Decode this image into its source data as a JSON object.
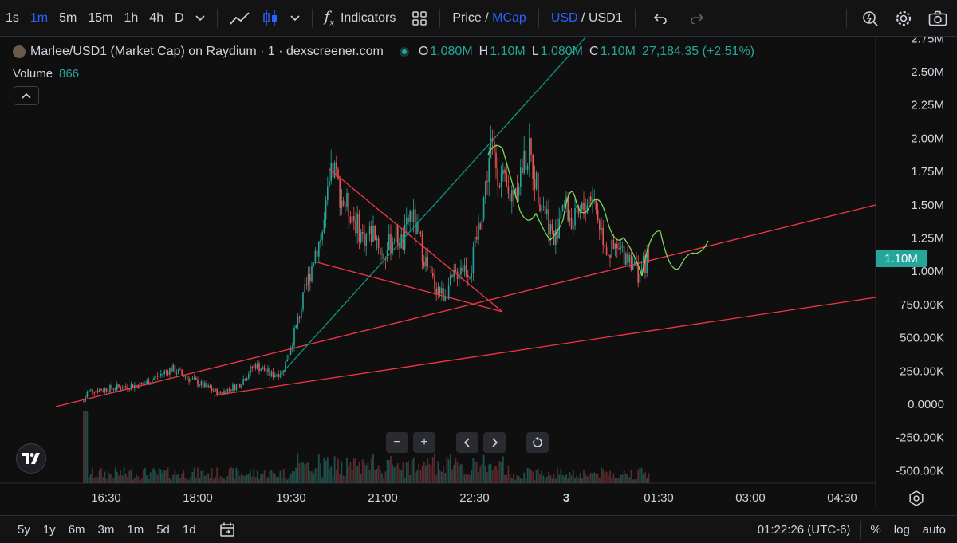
{
  "toolbar": {
    "intervals": [
      {
        "label": "1s",
        "active": false
      },
      {
        "label": "1m",
        "active": true
      },
      {
        "label": "5m",
        "active": false
      },
      {
        "label": "15m",
        "active": false
      },
      {
        "label": "1h",
        "active": false
      },
      {
        "label": "4h",
        "active": false
      },
      {
        "label": "D",
        "active": false
      }
    ],
    "indicators_label": "Indicators",
    "price_label": "Price",
    "price_sep": " / ",
    "mcap_label": "MCap",
    "usd_label": "USD",
    "usd_sep": " / ",
    "usd1_label": "USD1"
  },
  "legend": {
    "symbol": "Marlee/USD1 (Market Cap) on Raydium · 1 · dexscreener.com",
    "o_key": "O",
    "o_val": "1.080M",
    "h_key": "H",
    "h_val": "1.10M",
    "l_key": "L",
    "l_val": "1.080M",
    "c_key": "C",
    "c_val": "1.10M",
    "change": "27,184.35 (+2.51%)",
    "volume_label": "Volume",
    "volume_value": "866"
  },
  "price_axis": {
    "labels": [
      "2.75M",
      "2.50M",
      "2.25M",
      "2.00M",
      "1.75M",
      "1.50M",
      "1.25M",
      "1.00M",
      "750.00K",
      "500.00K",
      "250.00K",
      "0.0000",
      "-250.00K",
      "-500.00K"
    ],
    "values": [
      2750000,
      2500000,
      2250000,
      2000000,
      1750000,
      1500000,
      1250000,
      1000000,
      750000,
      500000,
      250000,
      0,
      -250000,
      -500000
    ],
    "current_label": "1.10M",
    "current_value": 1100000
  },
  "time_axis": {
    "labels": [
      "16:30",
      "18:00",
      "19:30",
      "21:00",
      "22:30",
      "3",
      "01:30",
      "03:00",
      "04:30"
    ]
  },
  "chart_data": {
    "type": "line",
    "title": "Marlee/USD1 (Market Cap) on Raydium · 1 · dexscreener.com",
    "xlabel": "",
    "ylabel": "",
    "x": [
      "16:00",
      "16:30",
      "17:00",
      "17:30",
      "18:00",
      "18:30",
      "19:00",
      "19:15",
      "19:30",
      "19:45",
      "19:55",
      "20:05",
      "20:15",
      "20:30",
      "20:45",
      "21:00",
      "21:15",
      "21:30",
      "21:45",
      "22:00",
      "22:15",
      "22:30",
      "22:40",
      "22:50",
      "23:00",
      "23:15",
      "23:30",
      "23:45",
      "00:00",
      "00:15",
      "00:30",
      "00:45",
      "01:00",
      "01:05"
    ],
    "series": [
      {
        "values": [
          0.02,
          0.1,
          0.15,
          0.2,
          0.26,
          0.14,
          0.2,
          0.3,
          0.22,
          0.5,
          1.05,
          1.75,
          1.45,
          1.25,
          1.08,
          1.15,
          1.28,
          1.1,
          0.85,
          0.78,
          0.95,
          1.1,
          1.45,
          1.95,
          1.75,
          1.9,
          1.55,
          1.45,
          1.6,
          1.5,
          1.35,
          1.15,
          1.05,
          1.1
        ]
      }
    ],
    "ylim": [
      -600000,
      2800000
    ],
    "colors": {
      "up": "#26a69a",
      "down": "#ef5350",
      "trend_red": "#f23645",
      "trend_teal": "#089981",
      "projection": "#7fd65a"
    }
  },
  "zoom": {
    "minus": "−",
    "plus": "+"
  },
  "bottom": {
    "ranges": [
      "5y",
      "1y",
      "6m",
      "3m",
      "1m",
      "5d",
      "1d"
    ],
    "time": "01:22:26 (UTC-6)",
    "percent": "%",
    "log": "log",
    "auto": "auto"
  }
}
